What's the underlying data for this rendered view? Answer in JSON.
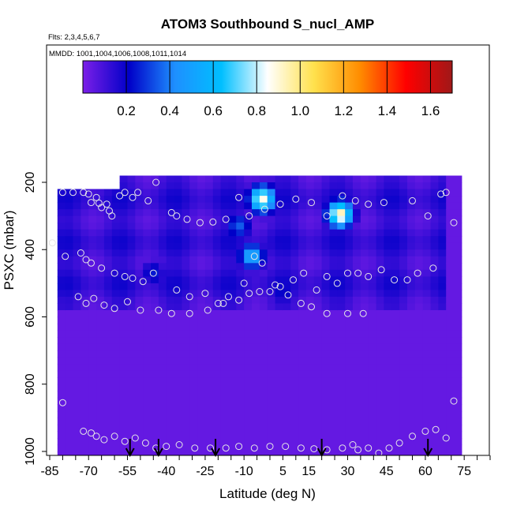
{
  "chart_data": {
    "type": "heatmap",
    "title": "ATOM3 Southbound S_nucl_AMP",
    "flights_label": "Flts: 2,3,4,5,6,7",
    "dates_label": "MMDD: 1001,1004,1006,1008,1011,1014",
    "xlabel": "Latitude (deg N)",
    "ylabel": "PSXC (mbar)",
    "xlim": [
      -85,
      85
    ],
    "ylim": [
      1010,
      0
    ],
    "x_ticks": [
      -85,
      -70,
      -55,
      -40,
      -25,
      -10,
      5,
      15,
      30,
      45,
      60,
      75
    ],
    "y_ticks": [
      200,
      400,
      600,
      800,
      1000
    ],
    "colorbar": {
      "range": [
        0,
        1.7
      ],
      "ticks": [
        0.2,
        0.4,
        0.6,
        0.8,
        1.0,
        1.2,
        1.4,
        1.6
      ],
      "tick_labels": [
        "0.2",
        "0.4",
        "0.6",
        "0.8",
        "1.0",
        "1.2",
        "1.4",
        "1.6"
      ],
      "colors": [
        "#7b1fe8",
        "#0000c8",
        "#1e90ff",
        "#00bfff",
        "#ffffff",
        "#ffe14d",
        "#ff8c00",
        "#ff0000",
        "#a01818"
      ]
    },
    "background_value": 0.04,
    "band_values": [
      {
        "lat_min": -84,
        "lat_max": 68,
        "p_min": 180,
        "p_max": 580,
        "value": 0.12
      }
    ],
    "hotspots": [
      {
        "lat": -3,
        "p": 250,
        "value": 0.88
      },
      {
        "lat": 27,
        "p": 295,
        "value": 0.95
      },
      {
        "lat": -7,
        "p": 420,
        "value": 0.55
      },
      {
        "lat": -12,
        "p": 330,
        "value": 0.35
      },
      {
        "lat": -45,
        "p": 470,
        "value": 0.25
      },
      {
        "lat": 5,
        "p": 530,
        "value": 0.22
      }
    ],
    "sample_points": [
      [
        -84,
        380
      ],
      [
        -80,
        230
      ],
      [
        -76,
        230
      ],
      [
        -72,
        230
      ],
      [
        -70,
        235
      ],
      [
        -69,
        260
      ],
      [
        -67,
        245
      ],
      [
        -66,
        262
      ],
      [
        -65,
        275
      ],
      [
        -63,
        265
      ],
      [
        -62,
        285
      ],
      [
        -61,
        300
      ],
      [
        -58,
        240
      ],
      [
        -56,
        230
      ],
      [
        -53,
        245
      ],
      [
        -51,
        230
      ],
      [
        -47,
        255
      ],
      [
        -44,
        200
      ],
      [
        -38,
        290
      ],
      [
        -36,
        300
      ],
      [
        -32,
        310
      ],
      [
        -27,
        320
      ],
      [
        -22,
        318
      ],
      [
        -17,
        310
      ],
      [
        -12,
        245
      ],
      [
        -8,
        300
      ],
      [
        -2,
        280
      ],
      [
        4,
        265
      ],
      [
        10,
        250
      ],
      [
        16,
        260
      ],
      [
        22,
        300
      ],
      [
        28,
        240
      ],
      [
        33,
        255
      ],
      [
        38,
        265
      ],
      [
        44,
        260
      ],
      [
        55,
        255
      ],
      [
        61,
        300
      ],
      [
        66,
        235
      ],
      [
        68,
        230
      ],
      [
        71,
        320
      ],
      [
        -79,
        420
      ],
      [
        -73,
        410
      ],
      [
        -71,
        430
      ],
      [
        -69,
        440
      ],
      [
        -65,
        455
      ],
      [
        -60,
        470
      ],
      [
        -56,
        480
      ],
      [
        -53,
        485
      ],
      [
        -49,
        495
      ],
      [
        -45,
        470
      ],
      [
        -36,
        520
      ],
      [
        -31,
        540
      ],
      [
        -25,
        530
      ],
      [
        -20,
        560
      ],
      [
        -16,
        540
      ],
      [
        -10,
        500
      ],
      [
        -6,
        420
      ],
      [
        -3,
        440
      ],
      [
        0,
        525
      ],
      [
        4,
        510
      ],
      [
        9,
        490
      ],
      [
        13,
        470
      ],
      [
        18,
        520
      ],
      [
        22,
        480
      ],
      [
        26,
        500
      ],
      [
        30,
        470
      ],
      [
        34,
        470
      ],
      [
        38,
        480
      ],
      [
        43,
        460
      ],
      [
        48,
        490
      ],
      [
        53,
        490
      ],
      [
        57,
        470
      ],
      [
        63,
        455
      ],
      [
        -74,
        540
      ],
      [
        -71,
        560
      ],
      [
        -68,
        545
      ],
      [
        -64,
        565
      ],
      [
        -60,
        575
      ],
      [
        -55,
        555
      ],
      [
        -50,
        580
      ],
      [
        -43,
        580
      ],
      [
        -38,
        590
      ],
      [
        -31,
        590
      ],
      [
        -24,
        580
      ],
      [
        -18,
        560
      ],
      [
        -12,
        550
      ],
      [
        -8,
        530
      ],
      [
        -4,
        525
      ],
      [
        2,
        505
      ],
      [
        7,
        535
      ],
      [
        12,
        560
      ],
      [
        16,
        570
      ],
      [
        22,
        590
      ],
      [
        30,
        590
      ],
      [
        36,
        590
      ],
      [
        -80,
        855
      ],
      [
        -72,
        940
      ],
      [
        -69,
        945
      ],
      [
        -67,
        955
      ],
      [
        -64,
        965
      ],
      [
        -60,
        955
      ],
      [
        -56,
        970
      ],
      [
        -52,
        960
      ],
      [
        -48,
        975
      ],
      [
        -44,
        990
      ],
      [
        -40,
        985
      ],
      [
        -35,
        980
      ],
      [
        -29,
        990
      ],
      [
        -23,
        990
      ],
      [
        -17,
        990
      ],
      [
        -12,
        985
      ],
      [
        -6,
        990
      ],
      [
        0,
        985
      ],
      [
        6,
        985
      ],
      [
        12,
        990
      ],
      [
        17,
        992
      ],
      [
        22,
        995
      ],
      [
        28,
        990
      ],
      [
        32,
        980
      ],
      [
        34,
        995
      ],
      [
        38,
        990
      ],
      [
        42,
        1005
      ],
      [
        46,
        990
      ],
      [
        50,
        975
      ],
      [
        55,
        955
      ],
      [
        60,
        940
      ],
      [
        64,
        935
      ],
      [
        68,
        960
      ],
      [
        71,
        850
      ]
    ],
    "vertical_profile_markers": [
      {
        "lat": -54,
        "label": ""
      },
      {
        "lat": -43,
        "label": ""
      },
      {
        "lat": -21,
        "label": ""
      },
      {
        "lat": 20,
        "label": ""
      },
      {
        "lat": 61,
        "label": ""
      }
    ]
  }
}
